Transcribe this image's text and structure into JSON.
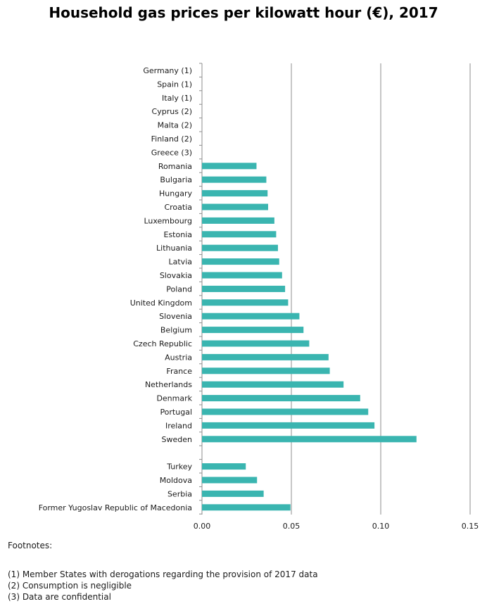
{
  "chart_data": {
    "type": "bar",
    "orientation": "horizontal",
    "title": "Household gas prices per kilowatt hour (€),  2017",
    "xlabel": "",
    "ylabel": "",
    "xlim": [
      0,
      0.15
    ],
    "x_ticks": [
      "0.00",
      "0.05",
      "0.10",
      "0.15"
    ],
    "x_tick_values": [
      0,
      0.05,
      0.1,
      0.15
    ],
    "grid": true,
    "bar_color": "#3ab5b0",
    "categories": [
      "Germany (1)",
      "Spain (1)",
      "Italy (1)",
      "Cyprus (2)",
      "Malta (2)",
      "Finland (2)",
      "Greece (3)",
      "Romania",
      "Bulgaria",
      "Hungary",
      "Croatia",
      "Luxembourg",
      "Estonia",
      "Lithuania",
      "Latvia",
      "Slovakia",
      "Poland",
      "United Kingdom",
      "Slovenia",
      "Belgium",
      "Czech Republic",
      "Austria",
      "France",
      "Netherlands",
      "Denmark",
      "Portugal",
      "Ireland",
      "Sweden",
      "",
      "Turkey",
      "Moldova",
      "Serbia",
      "Former Yugoslav Republic of Macedonia"
    ],
    "values": [
      null,
      null,
      null,
      null,
      null,
      null,
      null,
      0.0305,
      0.036,
      0.0367,
      0.037,
      0.0405,
      0.0415,
      0.0425,
      0.0432,
      0.0448,
      0.0465,
      0.0482,
      0.0545,
      0.0568,
      0.06,
      0.0708,
      0.0715,
      0.0792,
      0.0885,
      0.093,
      0.0965,
      0.12,
      null,
      0.0245,
      0.0308,
      0.0345,
      0.0495
    ]
  },
  "footnotes": {
    "heading": "Footnotes:",
    "items": [
      "(1)  Member States with derogations regarding the provision of 2017 data",
      "(2)  Consumption is negligible",
      "(3)  Data are confidential"
    ]
  }
}
